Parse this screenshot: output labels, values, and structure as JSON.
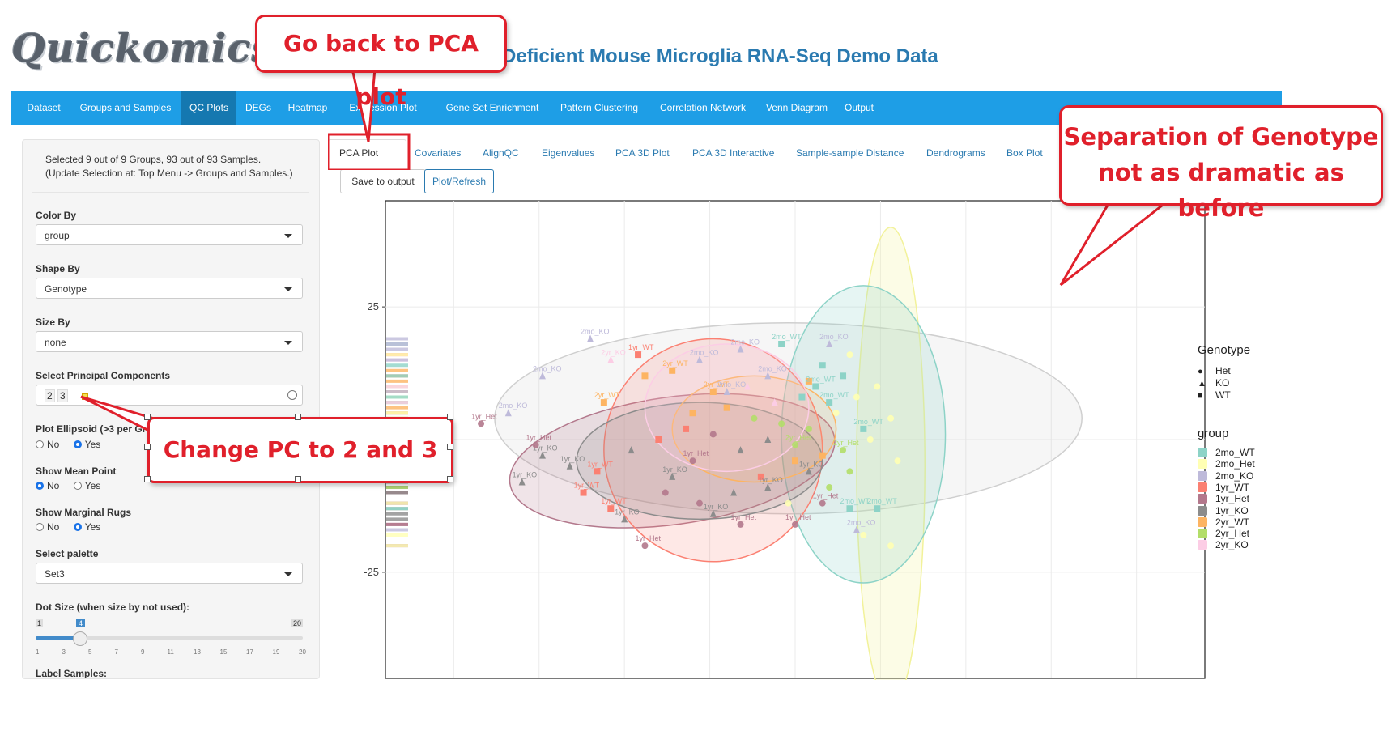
{
  "header": {
    "logo": "Quickomics",
    "title": "-Deficient Mouse Microglia RNA-Seq Demo Data"
  },
  "nav": {
    "items": [
      "Dataset",
      "Groups and Samples",
      "QC Plots",
      "DEGs",
      "Heatmap",
      "Expression Plot",
      "Gene Set Enrichment",
      "Pattern Clustering",
      "Correlation Network",
      "Venn Diagram",
      "Output"
    ],
    "active": "QC Plots"
  },
  "sidebar": {
    "selection_text": "Selected 9 out of 9 Groups, 93 out of 93 Samples. (Update Selection at: Top Menu -> Groups and Samples.)",
    "color_by_label": "Color By",
    "color_by_value": "group",
    "shape_by_label": "Shape By",
    "shape_by_value": "Genotype",
    "size_by_label": "Size By",
    "size_by_value": "none",
    "pc_label": "Select Principal Components",
    "pc_values": [
      "2",
      "3"
    ],
    "ellipsoid_label": "Plot Ellipsoid (>3 per Gro",
    "ellipsoid_no": "No",
    "ellipsoid_yes": "Yes",
    "ellipsoid_selected": "Yes",
    "mean_label": "Show Mean Point",
    "mean_no": "No",
    "mean_yes": "Yes",
    "mean_selected": "No",
    "rugs_label": "Show Marginal Rugs",
    "rugs_no": "No",
    "rugs_yes": "Yes",
    "rugs_selected": "Yes",
    "palette_label": "Select palette",
    "palette_value": "Set3",
    "dot_label": "Dot Size (when size by not used):",
    "dot_min": "1",
    "dot_max": "20",
    "dot_value": "4",
    "dot_ticks": [
      "1",
      "3",
      "5",
      "7",
      "9",
      "11",
      "13",
      "15",
      "17",
      "19",
      "20"
    ],
    "label_samples_label": "Label Samples:"
  },
  "tabs": [
    "PCA Plot",
    "Covariates",
    "AlignQC",
    "Eigenvalues",
    "PCA 3D Plot",
    "PCA 3D Interactive",
    "Sample-sample Distance",
    "Dendrograms",
    "Box Plot"
  ],
  "active_tab": "PCA Plot",
  "buttons": {
    "save": "Save to output",
    "refresh": "Plot/Refresh"
  },
  "callouts": {
    "pca": "Go back to PCA plot",
    "genotype": "Separation of Genotype not as dramatic as before",
    "pc": "Change PC to 2 and 3"
  },
  "chart_data": {
    "type": "scatter",
    "y_ticks": [
      "25",
      "-25"
    ],
    "legend_genotype_title": "Genotype",
    "genotype": [
      {
        "name": "Het",
        "shape": "circle"
      },
      {
        "name": "KO",
        "shape": "triangle"
      },
      {
        "name": "WT",
        "shape": "square"
      }
    ],
    "legend_group_title": "group",
    "groups": [
      {
        "name": "2mo_WT",
        "color": "#8dd3c7"
      },
      {
        "name": "2mo_Het",
        "color": "#ffffb3"
      },
      {
        "name": "2mo_KO",
        "color": "#bebada"
      },
      {
        "name": "1yr_WT",
        "color": "#fb8072"
      },
      {
        "name": "1yr_Het",
        "color": "#b3788c"
      },
      {
        "name": "1yr_KO",
        "color": "#8c8c8c"
      },
      {
        "name": "2yr_WT",
        "color": "#fdb462"
      },
      {
        "name": "2yr_Het",
        "color": "#b3de69"
      },
      {
        "name": "2yr_KO",
        "color": "#fccde5"
      }
    ],
    "ellipse_colors": {
      "all": "#cfcfcf",
      "2mo_WT": "#8dd3c7",
      "2mo_Het": "#f2f29a",
      "1yr_WT": "#fb8072",
      "1yr_Het": "#b3788c",
      "1yr_KO": "#8c8c8c",
      "2yr_WT": "#fdb462",
      "2yr_KO": "#fccde5"
    },
    "labels": [
      {
        "t": "2mo_KO",
        "x": -30,
        "y": 19,
        "g": "2mo_KO",
        "s": "triangle"
      },
      {
        "t": "2mo_KO",
        "x": -37,
        "y": 12,
        "g": "2mo_KO",
        "s": "triangle"
      },
      {
        "t": "2mo_KO",
        "x": -42,
        "y": 5,
        "g": "2mo_KO",
        "s": "triangle"
      },
      {
        "t": "1yr_WT",
        "x": -23,
        "y": 16,
        "g": "1yr_WT",
        "s": "square"
      },
      {
        "t": "2yr_KO",
        "x": -27,
        "y": 15,
        "g": "2yr_KO",
        "s": "triangle"
      },
      {
        "t": "1yr_Het",
        "x": -46,
        "y": 3,
        "g": "1yr_Het",
        "s": "circle"
      },
      {
        "t": "2mo_KO",
        "x": -8,
        "y": 17,
        "g": "2mo_KO",
        "s": "triangle"
      },
      {
        "t": "2mo_WT",
        "x": -2,
        "y": 18,
        "g": "2mo_WT",
        "s": "square"
      },
      {
        "t": "2mo_KO",
        "x": 5,
        "y": 18,
        "g": "2mo_KO",
        "s": "triangle"
      },
      {
        "t": "2mo_KO",
        "x": -14,
        "y": 15,
        "g": "2mo_KO",
        "s": "triangle"
      },
      {
        "t": "2mo_KO",
        "x": -4,
        "y": 12,
        "g": "2mo_KO",
        "s": "triangle"
      },
      {
        "t": "2mo_WT",
        "x": 3,
        "y": 10,
        "g": "2mo_WT",
        "s": "square"
      },
      {
        "t": "2yr_WT",
        "x": -18,
        "y": 13,
        "g": "2yr_WT",
        "s": "square"
      },
      {
        "t": "2yr_WT",
        "x": -12,
        "y": 9,
        "g": "2yr_WT",
        "s": "square"
      },
      {
        "t": "2yr_WT",
        "x": -28,
        "y": 7,
        "g": "2yr_WT",
        "s": "square"
      },
      {
        "t": "2mo_WT",
        "x": 5,
        "y": 7,
        "g": "2mo_WT",
        "s": "square"
      },
      {
        "t": "2mo_KO",
        "x": -10,
        "y": 9,
        "g": "2mo_KO",
        "s": "triangle"
      },
      {
        "t": "1yr_KO",
        "x": -37,
        "y": -3,
        "g": "1yr_KO",
        "s": "triangle"
      },
      {
        "t": "1yr_KO",
        "x": -33,
        "y": -5,
        "g": "1yr_KO",
        "s": "triangle"
      },
      {
        "t": "1yr_WT",
        "x": -29,
        "y": -6,
        "g": "1yr_WT",
        "s": "square"
      },
      {
        "t": "1yr_KO",
        "x": -40,
        "y": -8,
        "g": "1yr_KO",
        "s": "triangle"
      },
      {
        "t": "1yr_Het",
        "x": -38,
        "y": -1,
        "g": "1yr_Het",
        "s": "circle"
      },
      {
        "t": "1yr_WT",
        "x": -31,
        "y": -10,
        "g": "1yr_WT",
        "s": "square"
      },
      {
        "t": "1yr_WT",
        "x": -27,
        "y": -13,
        "g": "1yr_WT",
        "s": "square"
      },
      {
        "t": "1yr_KO",
        "x": -25,
        "y": -15,
        "g": "1yr_KO",
        "s": "triangle"
      },
      {
        "t": "2yr_Het",
        "x": 0,
        "y": -1,
        "g": "2yr_Het",
        "s": "circle"
      },
      {
        "t": "1yr_KO",
        "x": -4,
        "y": -9,
        "g": "1yr_KO",
        "s": "triangle"
      },
      {
        "t": "2mo_WT",
        "x": 8,
        "y": -13,
        "g": "2mo_WT",
        "s": "square"
      },
      {
        "t": "1yr_KO",
        "x": -12,
        "y": -14,
        "g": "1yr_KO",
        "s": "triangle"
      },
      {
        "t": "1yr_Het",
        "x": -8,
        "y": -16,
        "g": "1yr_Het",
        "s": "circle"
      },
      {
        "t": "1yr_Het",
        "x": -22,
        "y": -20,
        "g": "1yr_Het",
        "s": "circle"
      },
      {
        "t": "1yr_Het",
        "x": 4,
        "y": -12,
        "g": "1yr_Het",
        "s": "circle"
      },
      {
        "t": "2mo_KO",
        "x": 9,
        "y": -17,
        "g": "2mo_KO",
        "s": "triangle"
      },
      {
        "t": "1yr_Het",
        "x": 0,
        "y": -16,
        "g": "1yr_Het",
        "s": "circle"
      },
      {
        "t": "2mo_WT",
        "x": 10,
        "y": 2,
        "g": "2mo_WT",
        "s": "square"
      },
      {
        "t": "2mo_WT",
        "x": 12,
        "y": -13,
        "g": "2mo_WT",
        "s": "square"
      },
      {
        "t": "1yr_Het",
        "x": -15,
        "y": -4,
        "g": "1yr_Het",
        "s": "circle"
      },
      {
        "t": "1yr_KO",
        "x": -18,
        "y": -7,
        "g": "1yr_KO",
        "s": "triangle"
      },
      {
        "t": "2yr_Het",
        "x": 7,
        "y": -2,
        "g": "2yr_Het",
        "s": "circle"
      },
      {
        "t": "1yr_KO",
        "x": 2,
        "y": -6,
        "g": "1yr_KO",
        "s": "triangle"
      }
    ],
    "points": [
      {
        "x": -22,
        "y": 12,
        "g": "2yr_WT",
        "s": "square"
      },
      {
        "x": -15,
        "y": 5,
        "g": "2yr_WT",
        "s": "square"
      },
      {
        "x": -10,
        "y": 6,
        "g": "2yr_WT",
        "s": "square"
      },
      {
        "x": -6,
        "y": 4,
        "g": "2yr_Het",
        "s": "circle"
      },
      {
        "x": -2,
        "y": 3,
        "g": "2yr_Het",
        "s": "circle"
      },
      {
        "x": 2,
        "y": 2,
        "g": "2yr_Het",
        "s": "circle"
      },
      {
        "x": 6,
        "y": 5,
        "g": "2mo_Het",
        "s": "circle"
      },
      {
        "x": 9,
        "y": 8,
        "g": "2mo_Het",
        "s": "circle"
      },
      {
        "x": 12,
        "y": 10,
        "g": "2mo_Het",
        "s": "circle"
      },
      {
        "x": 14,
        "y": 4,
        "g": "2mo_Het",
        "s": "circle"
      },
      {
        "x": 11,
        "y": 0,
        "g": "2mo_Het",
        "s": "circle"
      },
      {
        "x": 15,
        "y": -4,
        "g": "2mo_Het",
        "s": "circle"
      },
      {
        "x": 10,
        "y": -18,
        "g": "2mo_Het",
        "s": "circle"
      },
      {
        "x": 14,
        "y": -20,
        "g": "2mo_Het",
        "s": "circle"
      },
      {
        "x": 8,
        "y": 16,
        "g": "2mo_Het",
        "s": "circle"
      },
      {
        "x": 4,
        "y": 14,
        "g": "2mo_WT",
        "s": "square"
      },
      {
        "x": 7,
        "y": 12,
        "g": "2mo_WT",
        "s": "square"
      },
      {
        "x": 1,
        "y": 8,
        "g": "2mo_WT",
        "s": "square"
      },
      {
        "x": -4,
        "y": 0,
        "g": "1yr_KO",
        "s": "triangle"
      },
      {
        "x": -8,
        "y": -2,
        "g": "1yr_KO",
        "s": "triangle"
      },
      {
        "x": -12,
        "y": 1,
        "g": "1yr_Het",
        "s": "circle"
      },
      {
        "x": -16,
        "y": 2,
        "g": "1yr_WT",
        "s": "square"
      },
      {
        "x": -20,
        "y": 0,
        "g": "1yr_WT",
        "s": "square"
      },
      {
        "x": -24,
        "y": -2,
        "g": "1yr_KO",
        "s": "triangle"
      },
      {
        "x": -19,
        "y": -10,
        "g": "1yr_Het",
        "s": "circle"
      },
      {
        "x": -14,
        "y": -12,
        "g": "1yr_Het",
        "s": "circle"
      },
      {
        "x": -9,
        "y": -10,
        "g": "1yr_KO",
        "s": "triangle"
      },
      {
        "x": -5,
        "y": -7,
        "g": "1yr_WT",
        "s": "square"
      },
      {
        "x": 0,
        "y": -4,
        "g": "2yr_WT",
        "s": "square"
      },
      {
        "x": 4,
        "y": -3,
        "g": "2yr_WT",
        "s": "square"
      },
      {
        "x": -3,
        "y": 7,
        "g": "2yr_KO",
        "s": "triangle"
      },
      {
        "x": -7,
        "y": 10,
        "g": "2yr_KO",
        "s": "triangle"
      },
      {
        "x": 2,
        "y": 11,
        "g": "2yr_WT",
        "s": "square"
      },
      {
        "x": -1,
        "y": -12,
        "g": "2mo_Het",
        "s": "circle"
      },
      {
        "x": 5,
        "y": -9,
        "g": "2yr_Het",
        "s": "circle"
      },
      {
        "x": 8,
        "y": -6,
        "g": "2yr_Het",
        "s": "circle"
      }
    ]
  }
}
